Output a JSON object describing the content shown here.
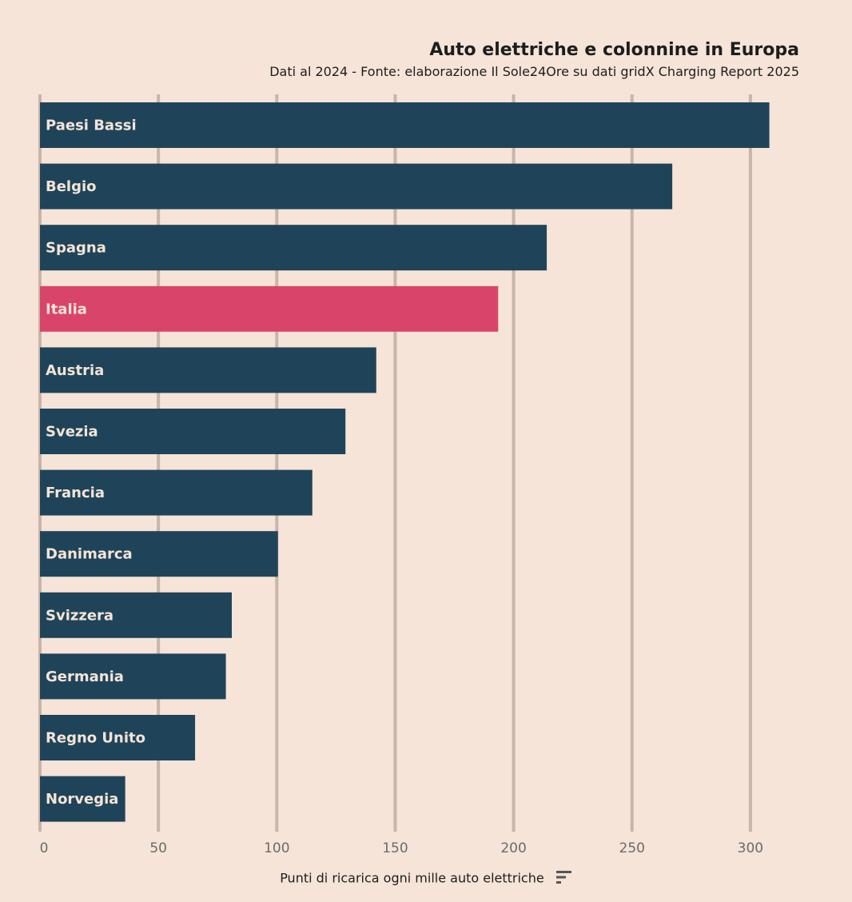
{
  "header": {
    "title": "Auto elettriche e colonnine in Europa",
    "subtitle": "Dati al 2024 - Fonte: elaborazione Il Sole24Ore su dati gridX Charging Report 2025"
  },
  "chart_data": {
    "type": "bar",
    "orientation": "horizontal",
    "title": "Auto elettriche e colonnine in Europa",
    "subtitle": "Dati al 2024 - Fonte: elaborazione Il Sole24Ore su dati gridX Charging Report 2025",
    "xlabel": "Punti di ricarica ogni mille auto elettriche",
    "ylabel": "",
    "categories": [
      "Paesi Bassi",
      "Belgio",
      "Spagna",
      "Italia",
      "Austria",
      "Svezia",
      "Francia",
      "Danimarca",
      "Svizzera",
      "Germania",
      "Regno Unito",
      "Norvegia"
    ],
    "values": [
      308,
      267,
      214,
      193.5,
      142,
      129,
      115,
      100.5,
      81,
      78.5,
      65.5,
      36
    ],
    "highlight": "Italia",
    "xlim": [
      0,
      300
    ],
    "xticks": [
      0,
      50,
      100,
      150,
      200,
      250,
      300
    ],
    "grid": "vertical",
    "colors": {
      "bar": "#1f4459",
      "highlight": "#d9456a",
      "grid": "#c8b5ab",
      "background": "#f5e4d7"
    }
  },
  "controls": {
    "sort_icon": "sort-icon"
  }
}
